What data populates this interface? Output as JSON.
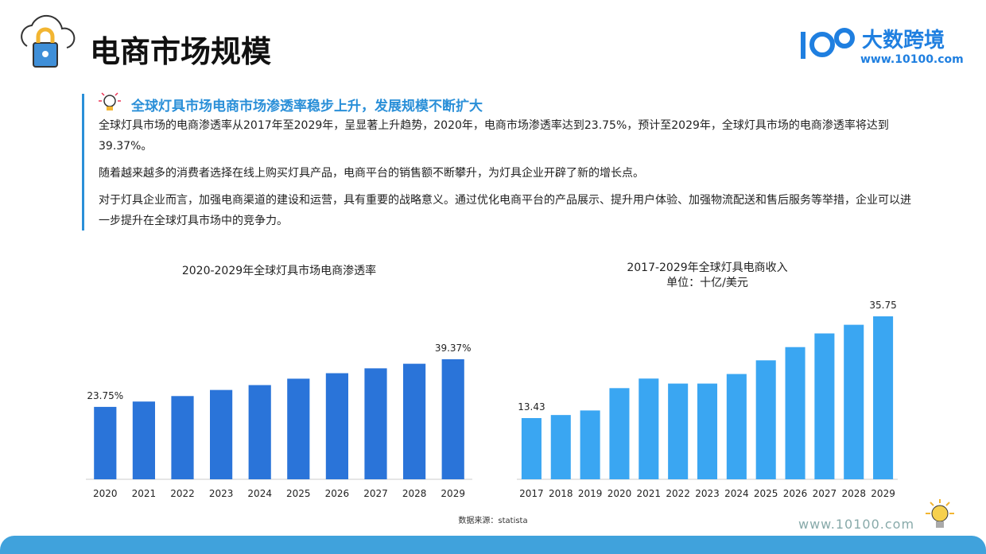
{
  "header": {
    "title": "电商市场规模",
    "brand": "大数跨境",
    "brand_url": "www.10100.com"
  },
  "section": {
    "heading": "全球灯具市场电商市场渗透率稳步上升，发展规模不断扩大",
    "paragraphs": [
      "全球灯具市场的电商渗透率从2017年至2029年，呈显著上升趋势，2020年，电商市场渗透率达到23.75%，预计至2029年，全球灯具市场的电商渗透率将达到39.37%。",
      "随着越来越多的消费者选择在线上购买灯具产品，电商平台的销售额不断攀升，为灯具企业开辟了新的增长点。",
      "对于灯具企业而言，加强电商渠道的建设和运营，具有重要的战略意义。通过优化电商平台的产品展示、提升用户体验、加强物流配送和售后服务等举措，企业可以进一步提升在全球灯具市场中的竞争力。"
    ]
  },
  "chart_data": [
    {
      "type": "bar",
      "title": "2020-2029年全球灯具市场电商渗透率",
      "categories": [
        "2020",
        "2021",
        "2022",
        "2023",
        "2024",
        "2025",
        "2026",
        "2027",
        "2028",
        "2029"
      ],
      "values": [
        23.75,
        25.5,
        27.3,
        29.3,
        30.9,
        33.0,
        34.8,
        36.4,
        37.9,
        39.37
      ],
      "value_labels": [
        "23.75%",
        null,
        null,
        null,
        null,
        null,
        null,
        null,
        null,
        "39.37%"
      ],
      "color": "#2a74d9"
    },
    {
      "type": "bar",
      "title": "2017-2029年全球灯具电商收入",
      "subtitle": "单位：十亿/美元",
      "categories": [
        "2017",
        "2018",
        "2019",
        "2020",
        "2021",
        "2022",
        "2023",
        "2024",
        "2025",
        "2026",
        "2027",
        "2028",
        "2029"
      ],
      "values": [
        13.43,
        14.1,
        15.1,
        20.0,
        22.1,
        21.0,
        21.0,
        23.1,
        26.1,
        29.0,
        32.0,
        33.9,
        35.75
      ],
      "value_labels": [
        "13.43",
        null,
        null,
        null,
        null,
        null,
        null,
        null,
        null,
        null,
        null,
        null,
        "35.75"
      ],
      "color": "#3aa6f2"
    }
  ],
  "source": "数据来源：statista",
  "footer": "www.10100.com"
}
